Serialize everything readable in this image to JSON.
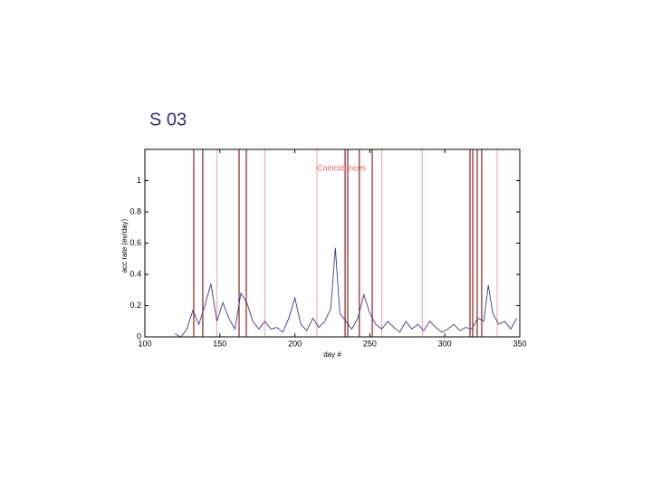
{
  "slide_title": "S 03",
  "chart_data": {
    "type": "line",
    "annotation": "Coincidences",
    "annotation_color": "#e06060",
    "xlabel": "day #",
    "ylabel": "acc rate (ev/day)",
    "xlim": [
      100,
      350
    ],
    "ylim": [
      0,
      1.2
    ],
    "xticks": [
      100,
      150,
      200,
      250,
      300,
      350
    ],
    "yticks": [
      0,
      0.2,
      0.4,
      0.6,
      0.8,
      1
    ],
    "color": "#3a3a8c",
    "x": [
      120,
      124,
      128,
      132,
      136,
      140,
      144,
      148,
      152,
      156,
      160,
      164,
      168,
      172,
      176,
      180,
      184,
      188,
      192,
      196,
      200,
      204,
      208,
      212,
      216,
      220,
      224,
      227,
      230,
      234,
      238,
      242,
      246,
      250,
      254,
      258,
      262,
      266,
      270,
      274,
      278,
      282,
      286,
      290,
      294,
      298,
      302,
      306,
      310,
      314,
      318,
      322,
      326,
      329,
      332,
      336,
      340,
      344,
      348
    ],
    "values": [
      0.02,
      0.0,
      0.05,
      0.17,
      0.08,
      0.2,
      0.34,
      0.1,
      0.22,
      0.12,
      0.05,
      0.28,
      0.22,
      0.1,
      0.05,
      0.1,
      0.05,
      0.06,
      0.03,
      0.12,
      0.25,
      0.08,
      0.04,
      0.12,
      0.06,
      0.1,
      0.18,
      0.57,
      0.15,
      0.1,
      0.05,
      0.12,
      0.27,
      0.15,
      0.08,
      0.05,
      0.1,
      0.06,
      0.03,
      0.1,
      0.05,
      0.08,
      0.04,
      0.1,
      0.06,
      0.03,
      0.05,
      0.08,
      0.04,
      0.06,
      0.05,
      0.12,
      0.1,
      0.33,
      0.15,
      0.08,
      0.1,
      0.05,
      0.12
    ],
    "markers": [
      {
        "x": 132.6,
        "color": "#8b2020"
      },
      {
        "x": 138.6,
        "color": "#8b2020"
      },
      {
        "x": 148,
        "color": "#f2b0b0"
      },
      {
        "x": 162.8,
        "color": "#8b2020"
      },
      {
        "x": 167.6,
        "color": "#8b2020"
      },
      {
        "x": 180,
        "color": "#f2b0b0"
      },
      {
        "x": 214.7,
        "color": "#f2b0b0"
      },
      {
        "x": 233.5,
        "color": "#8b2020"
      },
      {
        "x": 235.3,
        "color": "#8b2020"
      },
      {
        "x": 243,
        "color": "#8b2020"
      },
      {
        "x": 251.6,
        "color": "#8b2020"
      },
      {
        "x": 258,
        "color": "#f2b0b0"
      },
      {
        "x": 285,
        "color": "#f2b0b0"
      },
      {
        "x": 316.8,
        "color": "#8b2020"
      },
      {
        "x": 318.6,
        "color": "#8b2020"
      },
      {
        "x": 321.6,
        "color": "#8b2020"
      },
      {
        "x": 324.6,
        "color": "#8b2020"
      },
      {
        "x": 334.9,
        "color": "#f2b0b0"
      }
    ]
  }
}
